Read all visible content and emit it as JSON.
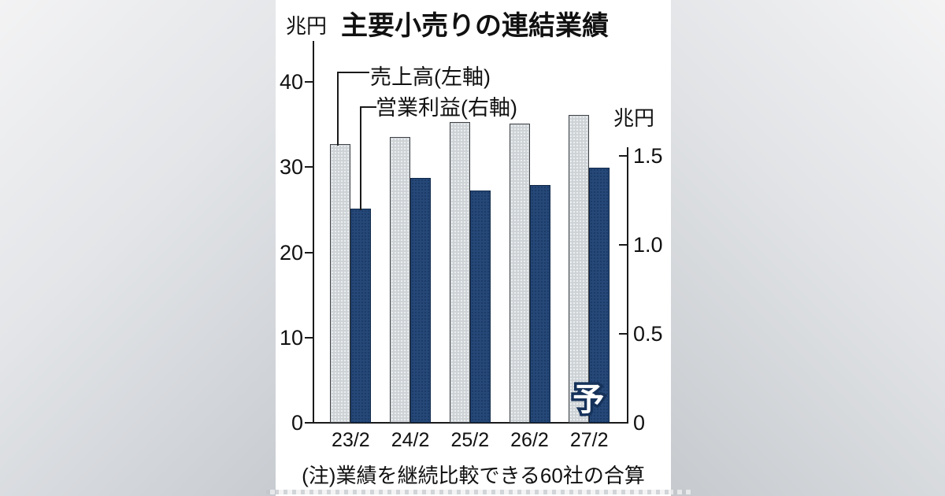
{
  "chart_data": {
    "type": "bar",
    "title": "主要小売りの連結業績",
    "categories": [
      "23/2",
      "24/2",
      "25/2",
      "26/2",
      "27/2"
    ],
    "series": [
      {
        "name": "売上高(左軸)",
        "axis": "left",
        "unit": "兆円",
        "color": "#cdd2d6",
        "values": [
          32.6,
          33.4,
          35.2,
          35.0,
          36.0
        ]
      },
      {
        "name": "営業利益(右軸)",
        "axis": "right",
        "unit": "兆円",
        "color": "#254878",
        "values": [
          1.2,
          1.37,
          1.3,
          1.33,
          1.43
        ]
      }
    ],
    "left_axis": {
      "unit": "兆円",
      "ticks": [
        "0",
        "10",
        "20",
        "30",
        "40"
      ],
      "range": [
        0,
        43
      ]
    },
    "right_axis": {
      "unit": "兆円",
      "ticks": [
        "0",
        "0.5",
        "1.0",
        "1.5"
      ],
      "range": [
        0,
        1.55
      ]
    },
    "forecast_label": "予",
    "forecast_category": "27/2",
    "note": "(注)業績を継続比較できる60社の合算",
    "legend_position": "top-left",
    "grid": false
  }
}
